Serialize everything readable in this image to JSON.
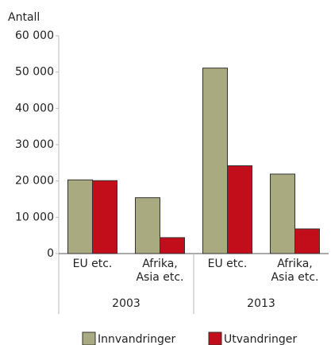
{
  "chart_data": {
    "type": "bar",
    "y_label": "Antall",
    "categories": [
      "EU etc.",
      "Afrika,\nAsia etc.",
      "EU etc.",
      "Afrika,\nAsia etc."
    ],
    "groups": [
      "2003",
      "2013"
    ],
    "series": [
      {
        "name": "Innvandringer",
        "color": "#a9aa80",
        "values": [
          20300,
          15400,
          51100,
          21900
        ]
      },
      {
        "name": "Utvandringer",
        "color": "#c20e1a",
        "values": [
          20100,
          4400,
          24200,
          6800
        ]
      }
    ],
    "ylim": [
      0,
      60000
    ],
    "yticks": [
      0,
      {
        "value": 10000,
        "label": "10 000"
      },
      {
        "value": 20000,
        "label": "20 000"
      },
      {
        "value": 30000,
        "label": "30 000"
      },
      {
        "value": 40000,
        "label": "40 000"
      },
      {
        "value": 50000,
        "label": "50 000"
      },
      {
        "value": 60000,
        "label": "60 000"
      }
    ]
  }
}
